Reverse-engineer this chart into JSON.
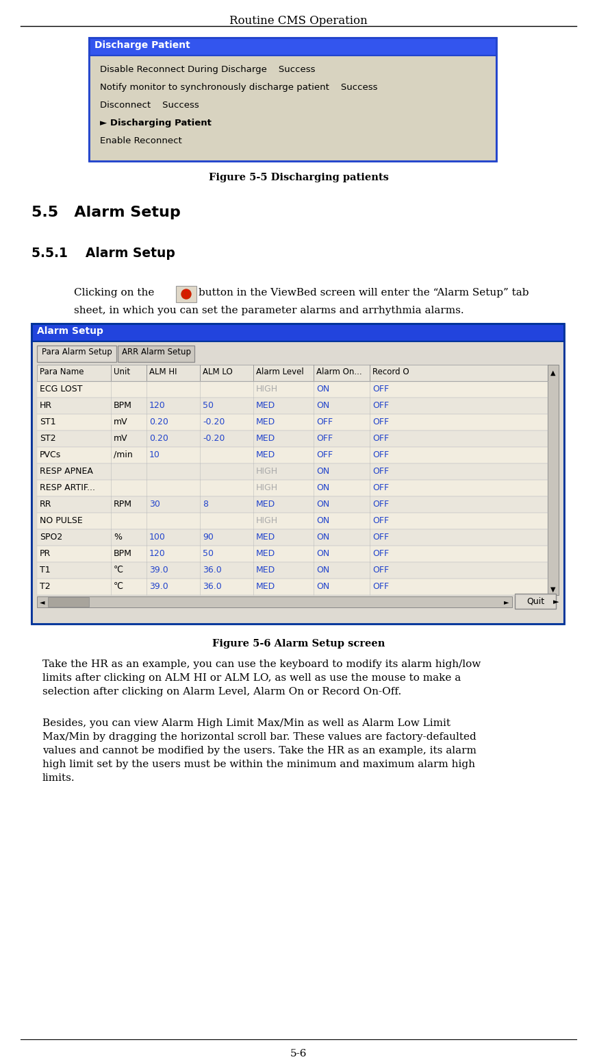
{
  "title": "Routine CMS Operation",
  "page_number": "5-6",
  "bg_color": "#ffffff",
  "fig1_caption": "Figure 5-5 Discharging patients",
  "fig2_caption": "Figure 5-6 Alarm Setup screen",
  "section_55_title": "5.5   Alarm Setup",
  "section_551_title": "5.5.1    Alarm Setup",
  "discharge_dialog_title": "Discharge Patient",
  "discharge_dialog_title_bg": "#3355ee",
  "discharge_dialog_bg": "#d8d3c0",
  "discharge_dialog_border": "#2244cc",
  "discharge_lines": [
    "Disable Reconnect During Discharge    Success",
    "Notify monitor to synchronously discharge patient    Success",
    "Disconnect    Success",
    "► Discharging Patient",
    "Enable Reconnect"
  ],
  "discharge_bold_line": "► Discharging Patient",
  "alarm_dialog_title": "Alarm Setup",
  "alarm_dialog_title_bg": "#2244dd",
  "alarm_tab1": "Para Alarm Setup",
  "alarm_tab2": "ARR Alarm Setup",
  "alarm_headers": [
    "Para Name",
    "Unit",
    "ALM HI",
    "ALM LO",
    "Alarm Level",
    "Alarm On...",
    "Record O"
  ],
  "alarm_rows": [
    [
      "ECG LOST",
      "",
      "",
      "",
      "HIGH",
      "ON",
      "OFF"
    ],
    [
      "HR",
      "BPM",
      "120",
      "50",
      "MED",
      "ON",
      "OFF"
    ],
    [
      "ST1",
      "mV",
      "0.20",
      "-0.20",
      "MED",
      "OFF",
      "OFF"
    ],
    [
      "ST2",
      "mV",
      "0.20",
      "-0.20",
      "MED",
      "OFF",
      "OFF"
    ],
    [
      "PVCs",
      "/min",
      "10",
      "",
      "MED",
      "OFF",
      "OFF"
    ],
    [
      "RESP APNEA",
      "",
      "",
      "",
      "HIGH",
      "ON",
      "OFF"
    ],
    [
      "RESP ARTIF...",
      "",
      "",
      "",
      "HIGH",
      "ON",
      "OFF"
    ],
    [
      "RR",
      "RPM",
      "30",
      "8",
      "MED",
      "ON",
      "OFF"
    ],
    [
      "NO PULSE",
      "",
      "",
      "",
      "HIGH",
      "ON",
      "OFF"
    ],
    [
      "SPO2",
      "%",
      "100",
      "90",
      "MED",
      "ON",
      "OFF"
    ],
    [
      "PR",
      "BPM",
      "120",
      "50",
      "MED",
      "ON",
      "OFF"
    ],
    [
      "T1",
      "℃",
      "39.0",
      "36.0",
      "MED",
      "ON",
      "OFF"
    ],
    [
      "T2",
      "℃",
      "39.0",
      "36.0",
      "MED",
      "ON",
      "OFF"
    ]
  ],
  "alarm_high_color": "#aaaaaa",
  "alarm_blue_color": "#2244cc",
  "alarm_black_color": "#000000",
  "para2_lines": [
    "Take the HR as an example, you can use the keyboard to modify its alarm high/low",
    "limits after clicking on ALM HI or ALM LO, as well as use the mouse to make a",
    "selection after clicking on Alarm Level, Alarm On or Record On-Off."
  ],
  "para3_lines": [
    "Besides, you can view Alarm High Limit Max/Min as well as Alarm Low Limit",
    "Max/Min by dragging the horizontal scroll bar. These values are factory-defaulted",
    "values and cannot be modified by the users. Take the HR as an example, its alarm",
    "high limit set by the users must be within the minimum and maximum alarm high",
    "limits."
  ]
}
